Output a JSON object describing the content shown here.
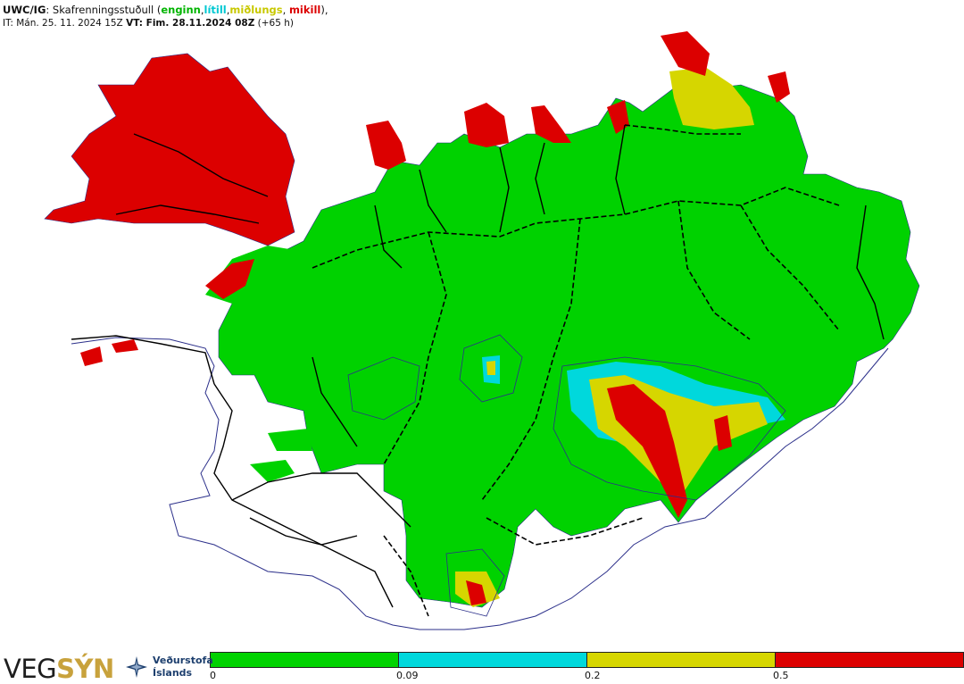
{
  "header": {
    "line1_model": "UWC/IG",
    "line1_sep": ": Skafrenningsstuðull (",
    "cat_none": "enginn",
    "comma1": ",",
    "cat_low": "lítill",
    "comma2": ",",
    "cat_mid": "miðlungs",
    "comma3": ", ",
    "cat_high": "mikill",
    "line1_end": "),",
    "line2_it": "IT: Mán. 25. 11. 2024 15Z ",
    "line2_vt": "VT: Fim. 28.11.2024 08Z",
    "line2_lead": " (+65 h)"
  },
  "colors": {
    "none": "#00d200",
    "low": "#00d8dc",
    "mid": "#d6d600",
    "high": "#dc0000",
    "coast": "#2b2f8a",
    "roads": "#000000"
  },
  "legend": {
    "ticks": [
      "0",
      "0.09",
      "0.2",
      "0.5"
    ]
  },
  "logos": {
    "vegsyn_a": "VEG",
    "vegsyn_b": "SÝN",
    "vedur_line1": "Veðurstofa",
    "vedur_line2": "Íslands"
  },
  "map_data": {
    "region": "Iceland",
    "field": "drifting snow index",
    "regions_with_high_index": [
      "Westfjords",
      "Northern peninsulas",
      "Langanes",
      "Southeast highlands"
    ]
  }
}
